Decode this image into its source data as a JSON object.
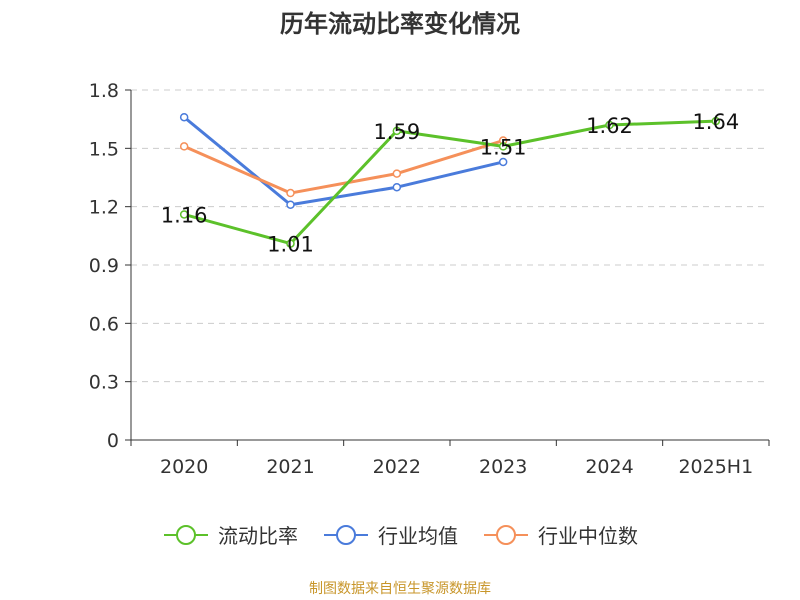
{
  "chart_data": {
    "type": "line",
    "title": "历年流动比率变化情况",
    "categories": [
      "2020",
      "2021",
      "2022",
      "2023",
      "2024",
      "2025H1"
    ],
    "ylim": [
      0,
      1.8
    ],
    "yticks": [
      "0",
      "0.3",
      "0.6",
      "0.9",
      "1.2",
      "1.5",
      "1.8"
    ],
    "grid": true,
    "legend_position": "bottom",
    "series": [
      {
        "name": "流动比率",
        "color": "#5CC12A",
        "values": [
          1.16,
          1.01,
          1.59,
          1.51,
          1.62,
          1.64
        ],
        "labels": [
          "1.16",
          "1.01",
          "1.59",
          "1.51",
          "1.62",
          "1.64"
        ]
      },
      {
        "name": "行业均值",
        "color": "#4A7BDB",
        "values": [
          1.66,
          1.21,
          1.3,
          1.43,
          null,
          null
        ]
      },
      {
        "name": "行业中位数",
        "color": "#F5905A",
        "values": [
          1.51,
          1.27,
          1.37,
          1.54,
          null,
          null
        ]
      }
    ]
  },
  "footer": {
    "source_text": "制图数据来自恒生聚源数据库",
    "source_color": "#C8962A"
  }
}
